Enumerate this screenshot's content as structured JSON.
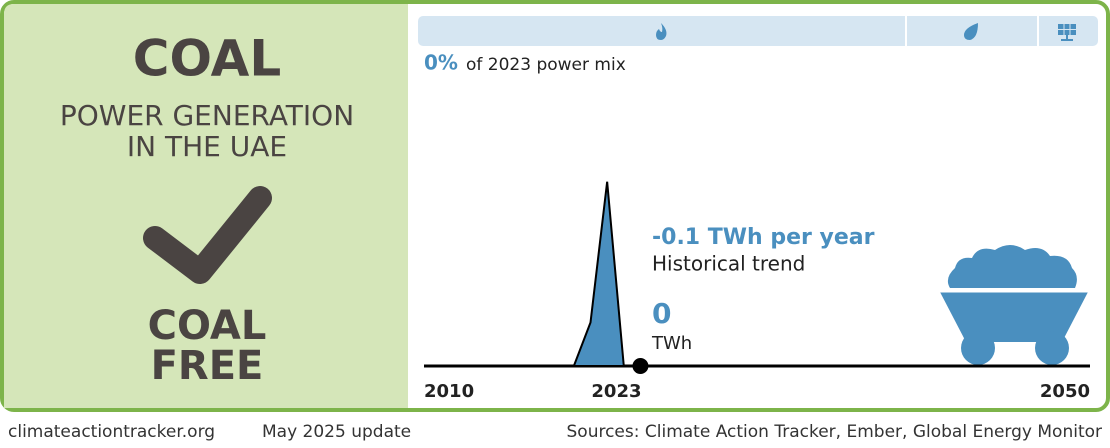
{
  "branding": {
    "title": "COAL",
    "subtitle_lines": [
      "POWER GENERATION",
      "IN THE UAE"
    ],
    "status_lines": [
      "COAL",
      "FREE"
    ]
  },
  "footer": {
    "site": "climateactiontracker.org",
    "update": "May 2025 update",
    "sources": "Sources: Climate Action Tracker, Ember, Global Energy Monitor"
  },
  "chart_data": {
    "type": "area",
    "share_label": "0%",
    "share_text": "of 2023 power mix",
    "trend_label": "-0.1 TWh per year",
    "trend_text": "Historical trend",
    "current": {
      "x": 2023,
      "value": 0
    },
    "current_unit": "TWh",
    "x": [
      2010,
      2019,
      2020,
      2021,
      2022
    ],
    "values": [
      0,
      0,
      2.6,
      11,
      0
    ],
    "color": "#4a8fbf",
    "xlim": [
      2010,
      2050
    ],
    "ylim": [
      0,
      12
    ],
    "xticks": [
      2010,
      2023,
      2050
    ]
  }
}
